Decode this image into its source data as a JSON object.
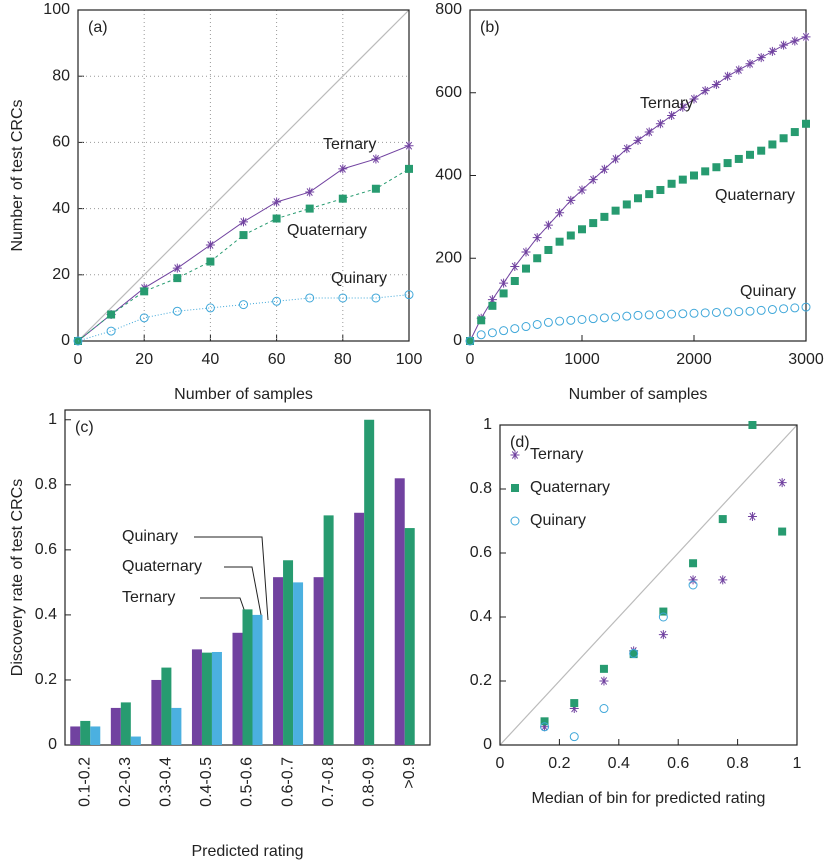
{
  "chart_data": [
    {
      "type": "line",
      "label": "(a)",
      "xlabel": "Number of samples",
      "ylabel": "Number of test CRCs",
      "x": [
        0,
        10,
        20,
        30,
        40,
        50,
        60,
        70,
        80,
        90,
        100
      ],
      "xlim": [
        0,
        100
      ],
      "xticks": [
        0,
        20,
        40,
        60,
        80,
        100
      ],
      "ylim": [
        0,
        100
      ],
      "yticks": [
        0,
        20,
        40,
        60,
        80,
        100
      ],
      "grid": true,
      "diagonal": true,
      "series": [
        {
          "name": "Ternary",
          "color": "#7142a0",
          "marker": "star",
          "line": "solid",
          "values": [
            0,
            8,
            16,
            22,
            29,
            36,
            42,
            45,
            52,
            55,
            59
          ]
        },
        {
          "name": "Quaternary",
          "color": "#279b70",
          "marker": "square",
          "line": "dashed",
          "values": [
            0,
            8,
            15,
            19,
            24,
            32,
            37,
            40,
            43,
            46,
            52
          ]
        },
        {
          "name": "Quinary",
          "color": "#3fa7d9",
          "marker": "circle",
          "line": "dotted",
          "values": [
            0,
            3,
            7,
            9,
            10,
            11,
            12,
            13,
            13,
            13,
            14
          ]
        }
      ]
    },
    {
      "type": "line",
      "label": "(b)",
      "xlabel": "Number of samples",
      "x": [
        0,
        100,
        200,
        300,
        400,
        500,
        600,
        700,
        800,
        900,
        1000,
        1100,
        1200,
        1300,
        1400,
        1500,
        1600,
        1700,
        1800,
        1900,
        2000,
        2100,
        2200,
        2300,
        2400,
        2500,
        2600,
        2700,
        2800,
        2900,
        3000
      ],
      "xlim": [
        0,
        3000
      ],
      "xticks": [
        0,
        1000,
        2000,
        3000
      ],
      "ylim": [
        0,
        800
      ],
      "yticks": [
        0,
        200,
        400,
        600,
        800
      ],
      "grid": false,
      "diagonal": false,
      "series": [
        {
          "name": "Ternary",
          "color": "#7142a0",
          "marker": "star",
          "line": "solid",
          "values": [
            0,
            55,
            100,
            140,
            180,
            215,
            250,
            280,
            310,
            340,
            365,
            390,
            415,
            440,
            465,
            485,
            505,
            525,
            545,
            565,
            585,
            605,
            620,
            640,
            655,
            670,
            685,
            700,
            715,
            725,
            735
          ]
        },
        {
          "name": "Quaternary",
          "color": "#279b70",
          "marker": "square",
          "line": "none",
          "values": [
            0,
            50,
            85,
            115,
            145,
            175,
            200,
            220,
            240,
            255,
            270,
            285,
            300,
            315,
            330,
            345,
            355,
            365,
            380,
            390,
            400,
            410,
            420,
            430,
            440,
            450,
            460,
            475,
            490,
            505,
            525
          ]
        },
        {
          "name": "Quinary",
          "color": "#3fa7d9",
          "marker": "circle",
          "line": "none",
          "values": [
            0,
            15,
            20,
            25,
            30,
            35,
            40,
            45,
            48,
            50,
            52,
            54,
            56,
            58,
            60,
            62,
            63,
            64,
            65,
            66,
            67,
            68,
            69,
            70,
            71,
            72,
            74,
            76,
            78,
            80,
            82
          ]
        }
      ]
    },
    {
      "type": "bar",
      "label": "(c)",
      "xlabel": "Predicted rating",
      "ylabel": "Discovery rate of test CRCs",
      "categories": [
        "0.1-0.2",
        "0.2-0.3",
        "0.3-0.4",
        "0.4-0.5",
        "0.5-0.6",
        "0.6-0.7",
        "0.7-0.8",
        "0.8-0.9",
        ">0.9"
      ],
      "ylim": [
        0,
        1.03
      ],
      "yticks": [
        0,
        0.2,
        0.4,
        0.6,
        0.8,
        1
      ],
      "series": [
        {
          "name": "Ternary",
          "color": "#7142a0",
          "values": [
            0.057,
            0.114,
            0.2,
            0.294,
            0.345,
            0.516,
            0.516,
            0.714,
            0.82
          ]
        },
        {
          "name": "Quaternary",
          "color": "#279b70",
          "values": [
            0.074,
            0.131,
            0.238,
            0.284,
            0.417,
            0.568,
            0.706,
            1.0,
            0.667
          ]
        },
        {
          "name": "Quinary",
          "color": "#4bb0e0",
          "values": [
            0.057,
            0.026,
            0.114,
            0.286,
            0.4,
            0.5,
            null,
            null,
            null
          ]
        }
      ]
    },
    {
      "type": "scatter",
      "label": "(d)",
      "xlabel": "Median of bin for predicted rating",
      "x": [
        0.15,
        0.25,
        0.35,
        0.45,
        0.55,
        0.65,
        0.75,
        0.85,
        0.95
      ],
      "xlim": [
        0,
        1
      ],
      "xticks": [
        0,
        0.2,
        0.4,
        0.6,
        0.8,
        1
      ],
      "ylim": [
        0,
        1
      ],
      "yticks": [
        0,
        0.2,
        0.4,
        0.6,
        0.8,
        1
      ],
      "diagonal": true,
      "legend": "upper left",
      "series": [
        {
          "name": "Ternary",
          "color": "#7142a0",
          "marker": "star",
          "values": [
            0.057,
            0.114,
            0.2,
            0.294,
            0.345,
            0.516,
            0.516,
            0.714,
            0.82
          ]
        },
        {
          "name": "Quaternary",
          "color": "#279b70",
          "marker": "square",
          "values": [
            0.074,
            0.131,
            0.238,
            0.284,
            0.417,
            0.568,
            0.706,
            1.0,
            0.667
          ]
        },
        {
          "name": "Quinary",
          "color": "#3fa7d9",
          "marker": "circle",
          "values": [
            0.057,
            0.026,
            0.114,
            0.286,
            0.4,
            0.5,
            null,
            null,
            null
          ]
        }
      ]
    }
  ]
}
